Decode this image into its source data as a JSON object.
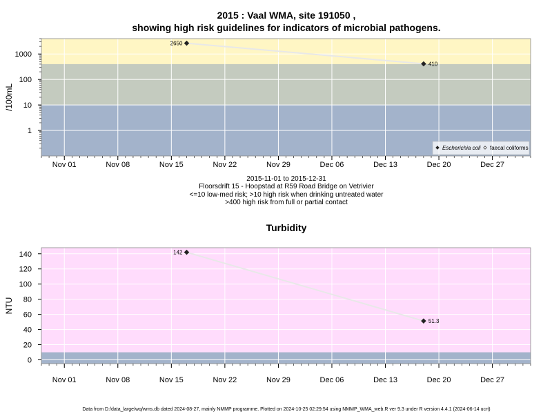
{
  "chart_data": [
    {
      "type": "line",
      "title": "2015 : Vaal WMA, site 191050 ,",
      "subtitle": "showing high risk guidelines for indicators of microbial pathogens.",
      "ylabel": "/100mL",
      "yscale": "log",
      "ylim": [
        0.1,
        4000
      ],
      "y_ticks": [
        1,
        10,
        100,
        1000
      ],
      "y_tick_labels": [
        "1",
        "10",
        "100",
        "1000"
      ],
      "x_ticks": [
        "Nov 01",
        "Nov 08",
        "Nov 15",
        "Nov 22",
        "Nov 29",
        "Dec 06",
        "Dec 13",
        "Dec 20",
        "Dec 27"
      ],
      "x_tick_dates": [
        "2015-11-01",
        "2015-11-08",
        "2015-11-15",
        "2015-11-22",
        "2015-11-29",
        "2015-12-06",
        "2015-12-13",
        "2015-12-20",
        "2015-12-27"
      ],
      "xlim": [
        "2015-10-29",
        "2016-01-01"
      ],
      "bands": [
        {
          "from": 0.1,
          "to": 10,
          "color": "#a3b3cb"
        },
        {
          "from": 10,
          "to": 400,
          "color": "#c4cbbf"
        },
        {
          "from": 400,
          "to": 4000,
          "color": "#fff6c4"
        }
      ],
      "background": "#a3b3cb",
      "grid": true,
      "series": [
        {
          "name": "Escherichia coli",
          "marker": "filled-diamond",
          "x": [
            "2015-11-17",
            "2015-12-18"
          ],
          "values": [
            2650,
            410
          ],
          "labels": [
            "2650",
            "410"
          ]
        },
        {
          "name": "faecal coliforms",
          "marker": "open-diamond",
          "x": [],
          "values": [],
          "labels": []
        }
      ],
      "legend": {
        "placement": "bottom-right",
        "entries": [
          "Escherichia coli",
          "faecal coliforms"
        ]
      },
      "caption": [
        "2015-11-01 to 2015-12-31",
        "Floorsdrift 15 - Hoopstad at R59 Road Bridge on Vetrivier",
        "<=10 low-med risk; >10 high risk when drinking untreated water",
        ">400 high risk from full or partial contact"
      ]
    },
    {
      "type": "line",
      "title": "Turbidity",
      "ylabel": "NTU",
      "yscale": "linear",
      "ylim": [
        -5,
        148
      ],
      "y_ticks": [
        0,
        20,
        40,
        60,
        80,
        100,
        120,
        140
      ],
      "y_tick_labels": [
        "0",
        "20",
        "40",
        "60",
        "80",
        "100",
        "120",
        "140"
      ],
      "x_ticks": [
        "Nov 01",
        "Nov 08",
        "Nov 15",
        "Nov 22",
        "Nov 29",
        "Dec 06",
        "Dec 13",
        "Dec 20",
        "Dec 27"
      ],
      "x_tick_dates": [
        "2015-11-01",
        "2015-11-08",
        "2015-11-15",
        "2015-11-22",
        "2015-11-29",
        "2015-12-06",
        "2015-12-13",
        "2015-12-20",
        "2015-12-27"
      ],
      "xlim": [
        "2015-10-29",
        "2016-01-01"
      ],
      "bands": [
        {
          "from": -5,
          "to": 10,
          "color": "#a3b3cb"
        },
        {
          "from": 10,
          "to": 148,
          "color": "#ffdcfc"
        }
      ],
      "background": "#ffdcfc",
      "grid": true,
      "series": [
        {
          "marker": "filled-diamond",
          "x": [
            "2015-11-17",
            "2015-12-18"
          ],
          "values": [
            142,
            51.3
          ],
          "labels": [
            "142",
            "51.3"
          ]
        }
      ]
    }
  ],
  "footer": "Data from D:/data_large/wq/wms.db dated 2024-08-27, mainly NMMP programme. Plotted on 2024-10-25 02:29:54 using NMMP_WMA_web.R ver 9.3 under R version 4.4.1 (2024-06-14 ucrt)"
}
